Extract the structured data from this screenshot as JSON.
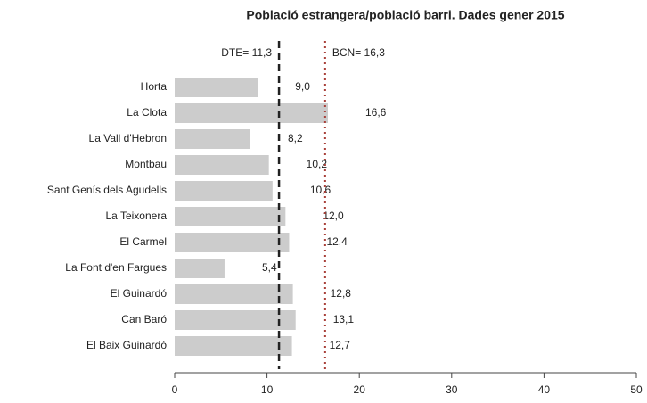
{
  "chart_data": {
    "type": "bar",
    "orientation": "horizontal",
    "title": "Població estrangera/població barri. Dades gener 2015",
    "categories": [
      "Horta",
      "La Clota",
      "La Vall d'Hebron",
      "Montbau",
      "Sant Genís dels Agudells",
      "La Teixonera",
      "El Carmel",
      "La Font d'en Fargues",
      "El Guinardó",
      "Can Baró",
      "El Baix Guinardó"
    ],
    "values": [
      9.0,
      16.6,
      8.2,
      10.2,
      10.6,
      12.0,
      12.4,
      5.4,
      12.8,
      13.1,
      12.7
    ],
    "value_labels": [
      "9,0",
      "16,6",
      "8,2",
      "10,2",
      "10,6",
      "12,0",
      "12,4",
      "5,4",
      "12,8",
      "13,1",
      "12,7"
    ],
    "color": "#cccccc",
    "xlim": [
      0,
      50
    ],
    "xticks": [
      0,
      10,
      20,
      30,
      40,
      50
    ],
    "reference_lines": [
      {
        "value": 11.3,
        "label": "DTE= 11,3",
        "color": "#222222",
        "text_color": "#33336b",
        "style": "dashed",
        "label_side": "left"
      },
      {
        "value": 16.3,
        "label": "BCN= 16,3",
        "color": "#a8403a",
        "text_color": "#a8403a",
        "style": "dotted",
        "label_side": "right"
      }
    ]
  }
}
